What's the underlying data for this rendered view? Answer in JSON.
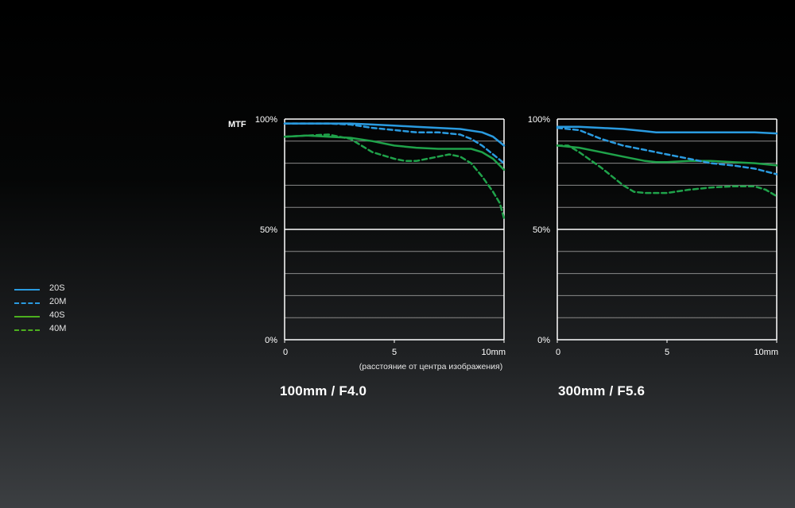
{
  "mtf_label": "MTF",
  "xaxis_note": "(расстояние от центра изображения)",
  "legend": [
    {
      "label": "20S",
      "color": "#2a9be0",
      "dashed": false
    },
    {
      "label": "20M",
      "color": "#2a9be0",
      "dashed": true
    },
    {
      "label": "40S",
      "color": "#4caf1f",
      "dashed": false
    },
    {
      "label": "40M",
      "color": "#4caf1f",
      "dashed": true
    }
  ],
  "colors": {
    "blue": "#2a9be0",
    "green": "#1fa24a",
    "grid": "#8a8a8a",
    "axis": "#ffffff"
  },
  "chart_data": [
    {
      "type": "line",
      "title": "100mm / F4.0",
      "xlim": [
        0,
        10
      ],
      "ylim": [
        0,
        100
      ],
      "x_ticks": [
        "0",
        "5",
        "10mm"
      ],
      "y_ticks": [
        "0%",
        "50%",
        "100%"
      ],
      "grid": true,
      "series": [
        {
          "name": "20S",
          "x": [
            0,
            1,
            2,
            3,
            4,
            5,
            6,
            7,
            8,
            9,
            9.5,
            10
          ],
          "y": [
            98,
            98,
            98,
            98,
            97.5,
            97,
            96.5,
            96,
            95.5,
            94,
            92,
            88
          ]
        },
        {
          "name": "20M",
          "x": [
            0,
            1,
            2,
            3,
            4,
            5,
            6,
            7,
            8,
            8.5,
            9,
            9.5,
            10
          ],
          "y": [
            98,
            98,
            98,
            97.5,
            96,
            95,
            94,
            94,
            93,
            91,
            88,
            84,
            80
          ]
        },
        {
          "name": "40S",
          "x": [
            0,
            1,
            2,
            3,
            4,
            5,
            6,
            7,
            8,
            8.5,
            9,
            9.5,
            10
          ],
          "y": [
            92,
            92.5,
            92,
            91.5,
            90,
            88,
            87,
            86.5,
            86.5,
            86.5,
            85,
            82,
            77
          ]
        },
        {
          "name": "40M",
          "x": [
            0,
            1,
            2,
            3,
            3.5,
            4,
            5,
            5.5,
            6,
            7,
            7.5,
            8,
            8.5,
            9,
            9.5,
            9.8,
            10
          ],
          "y": [
            92,
            92.5,
            93,
            91,
            88,
            85,
            82,
            81,
            81,
            83,
            84,
            83,
            80,
            74,
            67,
            62,
            55
          ]
        }
      ]
    },
    {
      "type": "line",
      "title": "300mm / F5.6",
      "xlim": [
        0,
        10
      ],
      "ylim": [
        0,
        100
      ],
      "x_ticks": [
        "0",
        "5",
        "10mm"
      ],
      "y_ticks": [
        "0%",
        "50%",
        "100%"
      ],
      "grid": true,
      "series": [
        {
          "name": "20S",
          "x": [
            0,
            1,
            2,
            3,
            4,
            4.5,
            5,
            6,
            7,
            8,
            9,
            10
          ],
          "y": [
            96.5,
            96.5,
            96,
            95.5,
            94.5,
            94,
            94,
            94,
            94,
            94,
            94,
            93.5
          ]
        },
        {
          "name": "20M",
          "x": [
            0,
            1,
            2,
            3,
            4,
            5,
            6,
            7,
            8,
            9,
            10
          ],
          "y": [
            96,
            95,
            91,
            88,
            86,
            84,
            82,
            80,
            79,
            77.5,
            75
          ]
        },
        {
          "name": "40S",
          "x": [
            0,
            1,
            2,
            3,
            4,
            4.5,
            5,
            6,
            7,
            8,
            9,
            10
          ],
          "y": [
            88,
            87,
            85,
            83,
            81,
            80.5,
            80.5,
            81,
            81,
            80.5,
            80,
            79
          ]
        },
        {
          "name": "40M",
          "x": [
            0,
            0.5,
            1,
            2,
            2.5,
            3,
            3.5,
            4,
            5,
            6,
            7,
            8,
            9,
            9.5,
            10
          ],
          "y": [
            88,
            88,
            85,
            78,
            74,
            70,
            67,
            66.5,
            66.5,
            68,
            69,
            69.5,
            69.5,
            68,
            65
          ]
        }
      ]
    }
  ]
}
